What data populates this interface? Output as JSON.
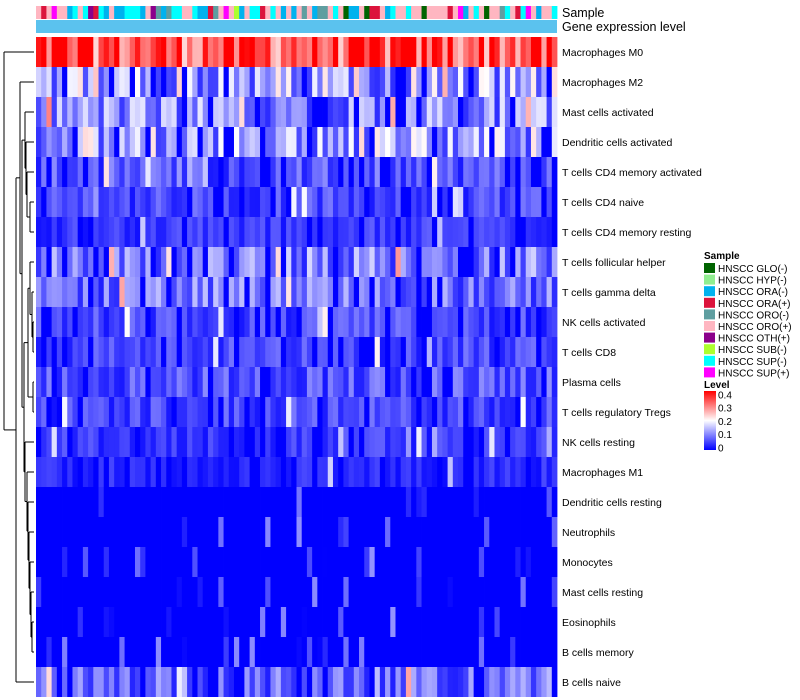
{
  "chart_data": {
    "type": "heatmap",
    "annotation_rows": [
      "Sample",
      "Gene expression level"
    ],
    "annotation_bar_color": "#5bc2ee",
    "rows": [
      "Macrophages M0",
      "Macrophages M2",
      "Mast cells activated",
      "Dendritic cells activated",
      "T cells CD4 memory activated",
      "T cells CD4 naive",
      "T cells CD4 memory resting",
      "T cells follicular helper",
      "T cells gamma delta",
      "NK cells activated",
      "T cells CD8",
      "Plasma cells",
      "T cells regulatory  Tregs",
      "NK cells resting",
      "Macrophages M1",
      "Dendritic cells resting",
      "Neutrophils",
      "Monocytes",
      "Mast cells resting",
      "Eosinophils",
      "B cells memory",
      "B cells naive"
    ],
    "row_mean_level": [
      0.34,
      0.12,
      0.1,
      0.12,
      0.06,
      0.05,
      0.04,
      0.09,
      0.08,
      0.05,
      0.05,
      0.06,
      0.05,
      0.04,
      0.03,
      0.01,
      0.01,
      0.01,
      0.01,
      0.005,
      0.005,
      0.08
    ],
    "n_samples": 100,
    "color_scale": {
      "title": "Level",
      "min": 0,
      "max": 0.4,
      "ticks": [
        "0.4",
        "0.3",
        "0.2",
        "0.1",
        "0"
      ],
      "colors": [
        "#0000ff",
        "#ffffff",
        "#ff0000"
      ]
    },
    "sample_legend": {
      "title": "Sample",
      "items": [
        {
          "label": "HNSCC GLO(-)",
          "color": "#006400"
        },
        {
          "label": "HNSCC HYP(-)",
          "color": "#90ee90"
        },
        {
          "label": "HNSCC ORA(-)",
          "color": "#00b2ee"
        },
        {
          "label": "HNSCC ORA(+)",
          "color": "#dc143c"
        },
        {
          "label": "HNSCC ORO(-)",
          "color": "#5f9ea0"
        },
        {
          "label": "HNSCC ORO(+)",
          "color": "#ffb6c1"
        },
        {
          "label": "HNSCC OTH(+)",
          "color": "#8b008b"
        },
        {
          "label": "HNSCC SUB(-)",
          "color": "#adff2f"
        },
        {
          "label": "HNSCC SUP(-)",
          "color": "#00ffff"
        },
        {
          "label": "HNSCC SUP(+)",
          "color": "#ff00ff"
        }
      ]
    }
  }
}
